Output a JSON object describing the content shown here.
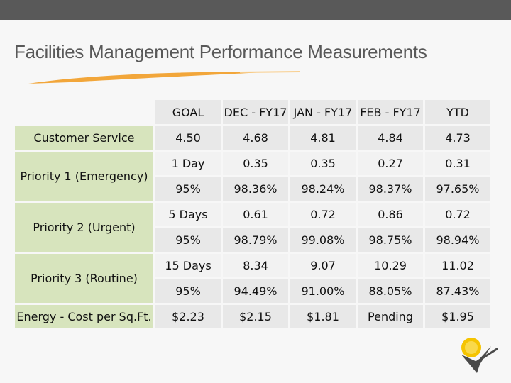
{
  "title": "Facilities Management Performance Measurements",
  "colors": {
    "header_bar": "#595959",
    "accent_orange": "#f2a63a",
    "label_green": "#d7e4bd",
    "cell_gray": "#e8e8e8"
  },
  "table": {
    "columns": [
      "GOAL",
      "DEC - FY17",
      "JAN - FY17",
      "FEB - FY17",
      "YTD"
    ],
    "customer_service": {
      "label": "Customer Service",
      "values": [
        "4.50",
        "4.68",
        "4.81",
        "4.84",
        "4.73"
      ]
    },
    "priority1": {
      "label": "Priority 1 (Emergency)",
      "row_a": [
        "1 Day",
        "0.35",
        "0.35",
        "0.27",
        "0.31"
      ],
      "row_b": [
        "95%",
        "98.36%",
        "98.24%",
        "98.37%",
        "97.65%"
      ]
    },
    "priority2": {
      "label": "Priority 2 (Urgent)",
      "row_a": [
        "5 Days",
        "0.61",
        "0.72",
        "0.86",
        "0.72"
      ],
      "row_b": [
        "95%",
        "98.79%",
        "99.08%",
        "98.75%",
        "98.94%"
      ]
    },
    "priority3": {
      "label": "Priority 3 (Routine)",
      "row_a": [
        "15 Days",
        "8.34",
        "9.07",
        "10.29",
        "11.02"
      ],
      "row_b": [
        "95%",
        "94.49%",
        "91.00%",
        "88.05%",
        "87.43%"
      ]
    },
    "energy": {
      "label": "Energy - Cost per Sq.Ft.",
      "values": [
        "$2.23",
        "$2.15",
        "$1.81",
        "Pending",
        "$1.95"
      ]
    }
  },
  "logo": {
    "icon": "sun-bird-logo-icon"
  }
}
